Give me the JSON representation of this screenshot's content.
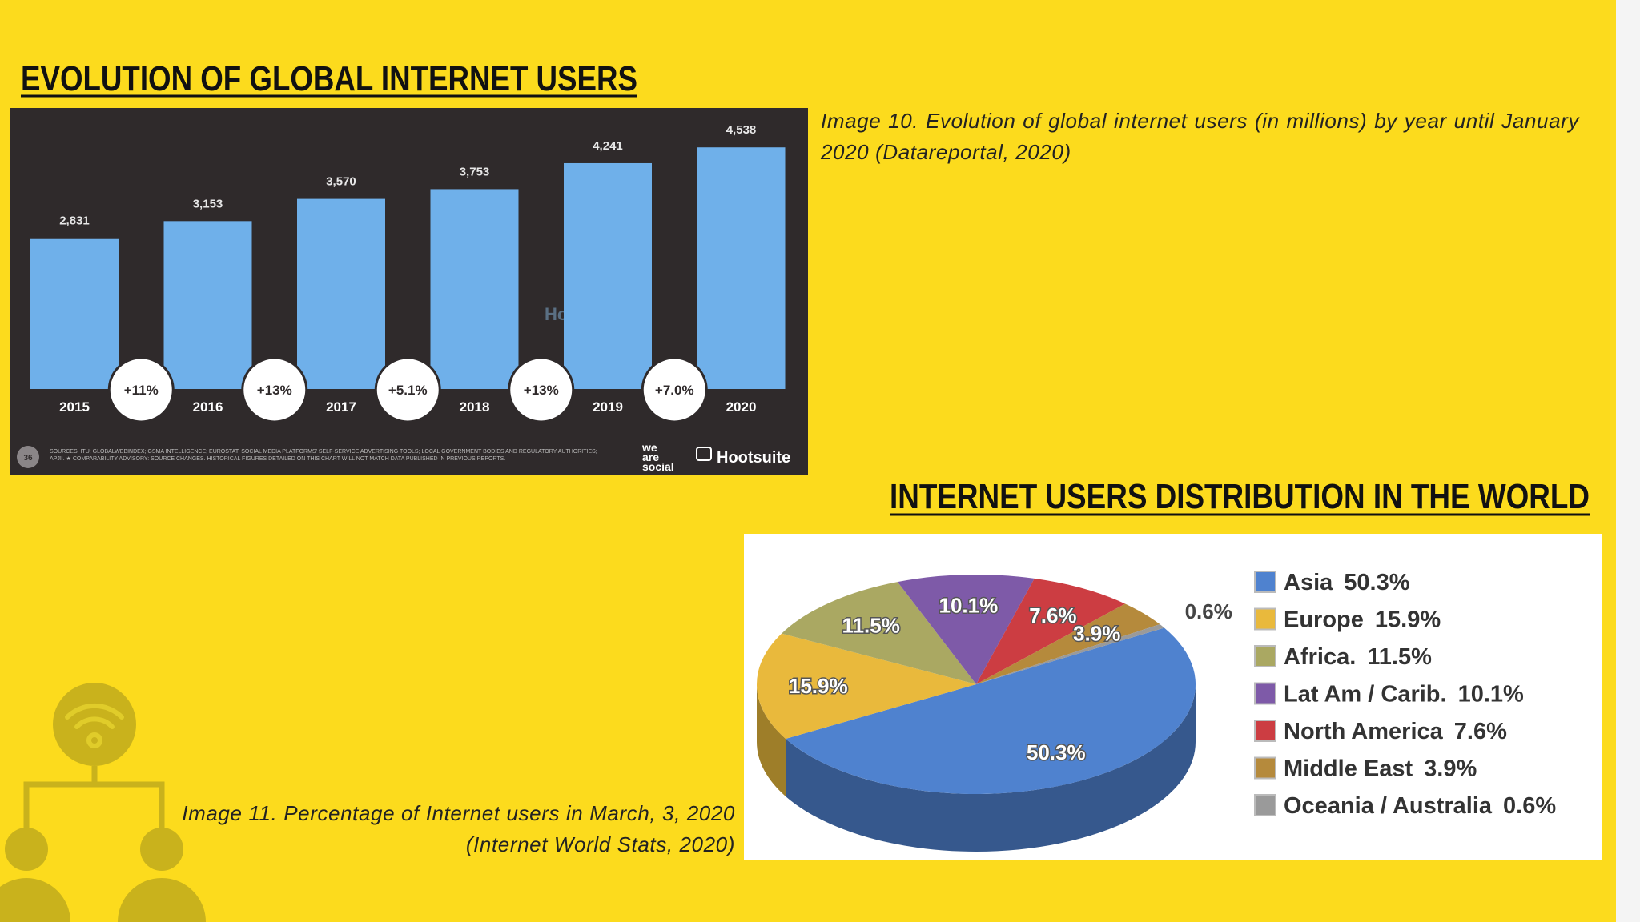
{
  "title_1": "EVOLUTION OF GLOBAL INTERNET USERS",
  "caption_1": "Image 10. Evolution of global internet users (in millions) by year until January 2020 (Datareportal, 2020)",
  "title_2": "INTERNET USERS DISTRIBUTION IN THE WORLD",
  "caption_2": "Image 11. Percentage of Internet users in March, 3, 2020 (Internet World Stats, 2020)",
  "chart_data": [
    {
      "type": "bar",
      "categories": [
        "2015",
        "2016",
        "2017",
        "2018",
        "2019",
        "2020"
      ],
      "values": [
        2831,
        3153,
        3570,
        3753,
        4241,
        4538
      ],
      "value_labels": [
        "2,831",
        "3,153",
        "3,570",
        "3,753",
        "4,241",
        "4,538"
      ],
      "growth_labels": [
        "+11%",
        "+13%",
        "+5.1%",
        "+13%",
        "+7.0%"
      ],
      "color": "#6fb0ea",
      "page_number": "36",
      "source": "SOURCES: ITU; GLOBALWEBINDEX; GSMA INTELLIGENCE; EUROSTAT; SOCIAL MEDIA PLATFORMS' SELF-SERVICE ADVERTISING TOOLS; LOCAL GOVERNMENT BODIES AND REGULATORY AUTHORITIES; APJII. ★ COMPARABILITY ADVISORY: SOURCE CHANGES. HISTORICAL FIGURES DETAILED ON THIS CHART WILL NOT MATCH DATA PUBLISHED IN PREVIOUS REPORTS.",
      "logo_1": [
        "we",
        "are",
        "social"
      ],
      "logo_2": "Hootsuite"
    },
    {
      "type": "pie",
      "categories": [
        "Asia",
        "Europe",
        "Africa.",
        "Lat Am / Carib.",
        "North America",
        "Middle East",
        "Oceania / Australia"
      ],
      "values": [
        50.3,
        15.9,
        11.5,
        10.1,
        7.6,
        3.9,
        0.6
      ],
      "value_labels": [
        "50.3%",
        "15.9%",
        "11.5%",
        "10.1%",
        "7.6%",
        "3.9%",
        "0.6%"
      ],
      "colors": [
        "#4f82cf",
        "#e9b93c",
        "#aaa862",
        "#7e5aa8",
        "#cc3d42",
        "#b58a3c",
        "#9a9a9a"
      ],
      "legend": "right"
    }
  ]
}
